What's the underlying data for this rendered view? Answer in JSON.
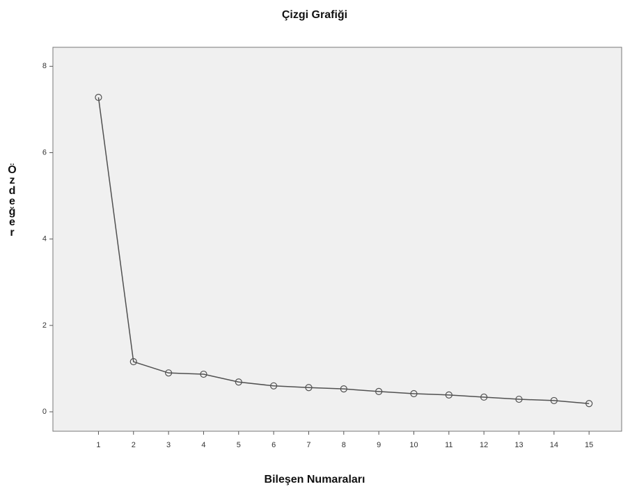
{
  "chart_data": {
    "type": "line",
    "title": "Çizgi Grafiği",
    "xlabel": "Bileşen Numaraları",
    "ylabel": "Özdeğer",
    "x": [
      1,
      2,
      3,
      4,
      5,
      6,
      7,
      8,
      9,
      10,
      11,
      12,
      13,
      14,
      15
    ],
    "series": [
      {
        "color": "#505050",
        "values": [
          7.28,
          1.16,
          0.9,
          0.87,
          0.69,
          0.6,
          0.56,
          0.53,
          0.47,
          0.42,
          0.39,
          0.34,
          0.29,
          0.26,
          0.19
        ]
      }
    ],
    "xlim": [
      -0.3,
      15.93
    ],
    "ylim": [
      -0.45,
      8.44
    ],
    "xticks": [
      1,
      2,
      3,
      4,
      5,
      6,
      7,
      8,
      9,
      10,
      11,
      12,
      13,
      14,
      15
    ],
    "yticks": [
      0,
      2,
      4,
      6,
      8
    ],
    "grid": false
  }
}
